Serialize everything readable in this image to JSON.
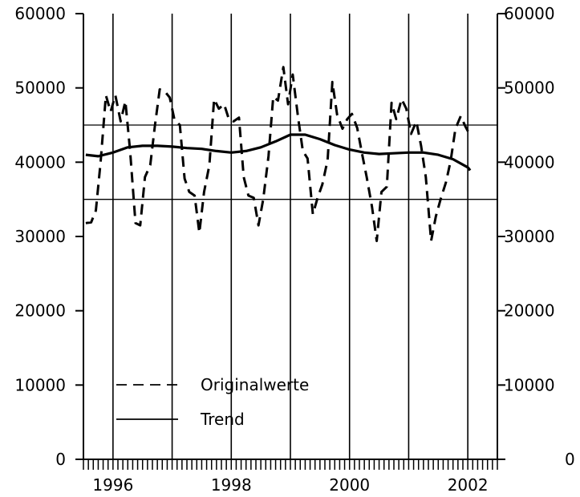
{
  "chart_data": {
    "type": "line",
    "title": "",
    "xlabel": "",
    "ylabel": "",
    "x_range": [
      1995.5,
      2002.5
    ],
    "ylim": [
      0,
      60000
    ],
    "y_ticks": [
      0,
      10000,
      20000,
      30000,
      40000,
      50000,
      60000
    ],
    "y_tick_labels": [
      "0",
      "10000",
      "20000",
      "30000",
      "40000",
      "50000",
      "60000"
    ],
    "y_tick_labels_right": [
      "0",
      "10000",
      "20000",
      "30000",
      "40000",
      "50000",
      "60000"
    ],
    "x_tick_labels": [
      {
        "value": 1996,
        "label": "1996"
      },
      {
        "value": 1998,
        "label": "1998"
      },
      {
        "value": 2000,
        "label": "2000"
      },
      {
        "value": 2002,
        "label": "2002"
      }
    ],
    "year_gridlines": [
      1996,
      1997,
      1998,
      1999,
      2000,
      2001,
      2002
    ],
    "horizontal_reference_lines": [
      35000,
      45000
    ],
    "minor_ticks": "monthly",
    "grid": "vertical at year boundaries, horizontal at 35000 and 45000",
    "legend": {
      "placement": "bottom-left",
      "entries": [
        {
          "label": "Originalwerte",
          "style": "dashed"
        },
        {
          "label": "Trend",
          "style": "solid"
        }
      ]
    },
    "series": [
      {
        "name": "Originalwerte",
        "style": "dashed",
        "points": [
          [
            1995.54,
            31800
          ],
          [
            1995.63,
            31900
          ],
          [
            1995.71,
            33500
          ],
          [
            1995.79,
            40000
          ],
          [
            1995.88,
            49000
          ],
          [
            1995.96,
            46800
          ],
          [
            1996.04,
            49000
          ],
          [
            1996.13,
            45500
          ],
          [
            1996.21,
            48200
          ],
          [
            1996.29,
            41500
          ],
          [
            1996.38,
            31800
          ],
          [
            1996.46,
            31500
          ],
          [
            1996.54,
            38000
          ],
          [
            1996.63,
            39600
          ],
          [
            1996.71,
            45000
          ],
          [
            1996.79,
            49800
          ],
          [
            1996.88,
            49500
          ],
          [
            1996.96,
            48700
          ],
          [
            1997.04,
            45700
          ],
          [
            1997.13,
            45000
          ],
          [
            1997.21,
            37800
          ],
          [
            1997.29,
            36000
          ],
          [
            1997.38,
            35500
          ],
          [
            1997.46,
            30500
          ],
          [
            1997.54,
            36000
          ],
          [
            1997.63,
            39600
          ],
          [
            1997.71,
            48500
          ],
          [
            1997.79,
            47200
          ],
          [
            1997.88,
            47800
          ],
          [
            1997.96,
            45800
          ],
          [
            1998.04,
            45500
          ],
          [
            1998.13,
            46000
          ],
          [
            1998.21,
            38000
          ],
          [
            1998.29,
            35500
          ],
          [
            1998.38,
            35200
          ],
          [
            1998.46,
            31500
          ],
          [
            1998.54,
            35000
          ],
          [
            1998.63,
            40800
          ],
          [
            1998.71,
            48800
          ],
          [
            1998.79,
            48300
          ],
          [
            1998.88,
            52800
          ],
          [
            1998.96,
            47800
          ],
          [
            1999.04,
            51800
          ],
          [
            1999.13,
            46000
          ],
          [
            1999.21,
            41500
          ],
          [
            1999.29,
            40500
          ],
          [
            1999.38,
            33000
          ],
          [
            1999.46,
            35200
          ],
          [
            1999.54,
            37000
          ],
          [
            1999.63,
            40300
          ],
          [
            1999.71,
            50800
          ],
          [
            1999.79,
            46400
          ],
          [
            1999.88,
            44500
          ],
          [
            1999.96,
            45800
          ],
          [
            2000.04,
            46500
          ],
          [
            2000.13,
            44600
          ],
          [
            2000.21,
            41200
          ],
          [
            2000.29,
            38000
          ],
          [
            2000.38,
            34000
          ],
          [
            2000.46,
            29400
          ],
          [
            2000.54,
            36000
          ],
          [
            2000.63,
            36700
          ],
          [
            2000.71,
            48000
          ],
          [
            2000.79,
            45800
          ],
          [
            2000.88,
            48500
          ],
          [
            2000.96,
            47200
          ],
          [
            2001.04,
            43800
          ],
          [
            2001.13,
            45500
          ],
          [
            2001.21,
            42200
          ],
          [
            2001.29,
            38000
          ],
          [
            2001.38,
            29400
          ],
          [
            2001.46,
            32700
          ],
          [
            2001.54,
            35000
          ],
          [
            2001.63,
            37300
          ],
          [
            2001.71,
            40200
          ],
          [
            2001.79,
            44500
          ],
          [
            2001.88,
            46200
          ],
          [
            2001.96,
            44800
          ],
          [
            2002.04,
            43600
          ]
        ]
      },
      {
        "name": "Trend",
        "style": "solid",
        "points": [
          [
            1995.54,
            41000
          ],
          [
            1995.75,
            40800
          ],
          [
            1996.0,
            41300
          ],
          [
            1996.25,
            42000
          ],
          [
            1996.5,
            42200
          ],
          [
            1996.75,
            42200
          ],
          [
            1997.0,
            42100
          ],
          [
            1997.25,
            41900
          ],
          [
            1997.5,
            41800
          ],
          [
            1997.75,
            41500
          ],
          [
            1998.0,
            41300
          ],
          [
            1998.25,
            41500
          ],
          [
            1998.5,
            42000
          ],
          [
            1998.75,
            42800
          ],
          [
            1999.0,
            43700
          ],
          [
            1999.25,
            43700
          ],
          [
            1999.5,
            43100
          ],
          [
            1999.75,
            42300
          ],
          [
            2000.0,
            41700
          ],
          [
            2000.25,
            41300
          ],
          [
            2000.5,
            41100
          ],
          [
            2000.75,
            41200
          ],
          [
            2001.0,
            41300
          ],
          [
            2001.25,
            41300
          ],
          [
            2001.5,
            41000
          ],
          [
            2001.75,
            40400
          ],
          [
            2002.0,
            39300
          ],
          [
            2002.04,
            38900
          ]
        ]
      }
    ]
  }
}
